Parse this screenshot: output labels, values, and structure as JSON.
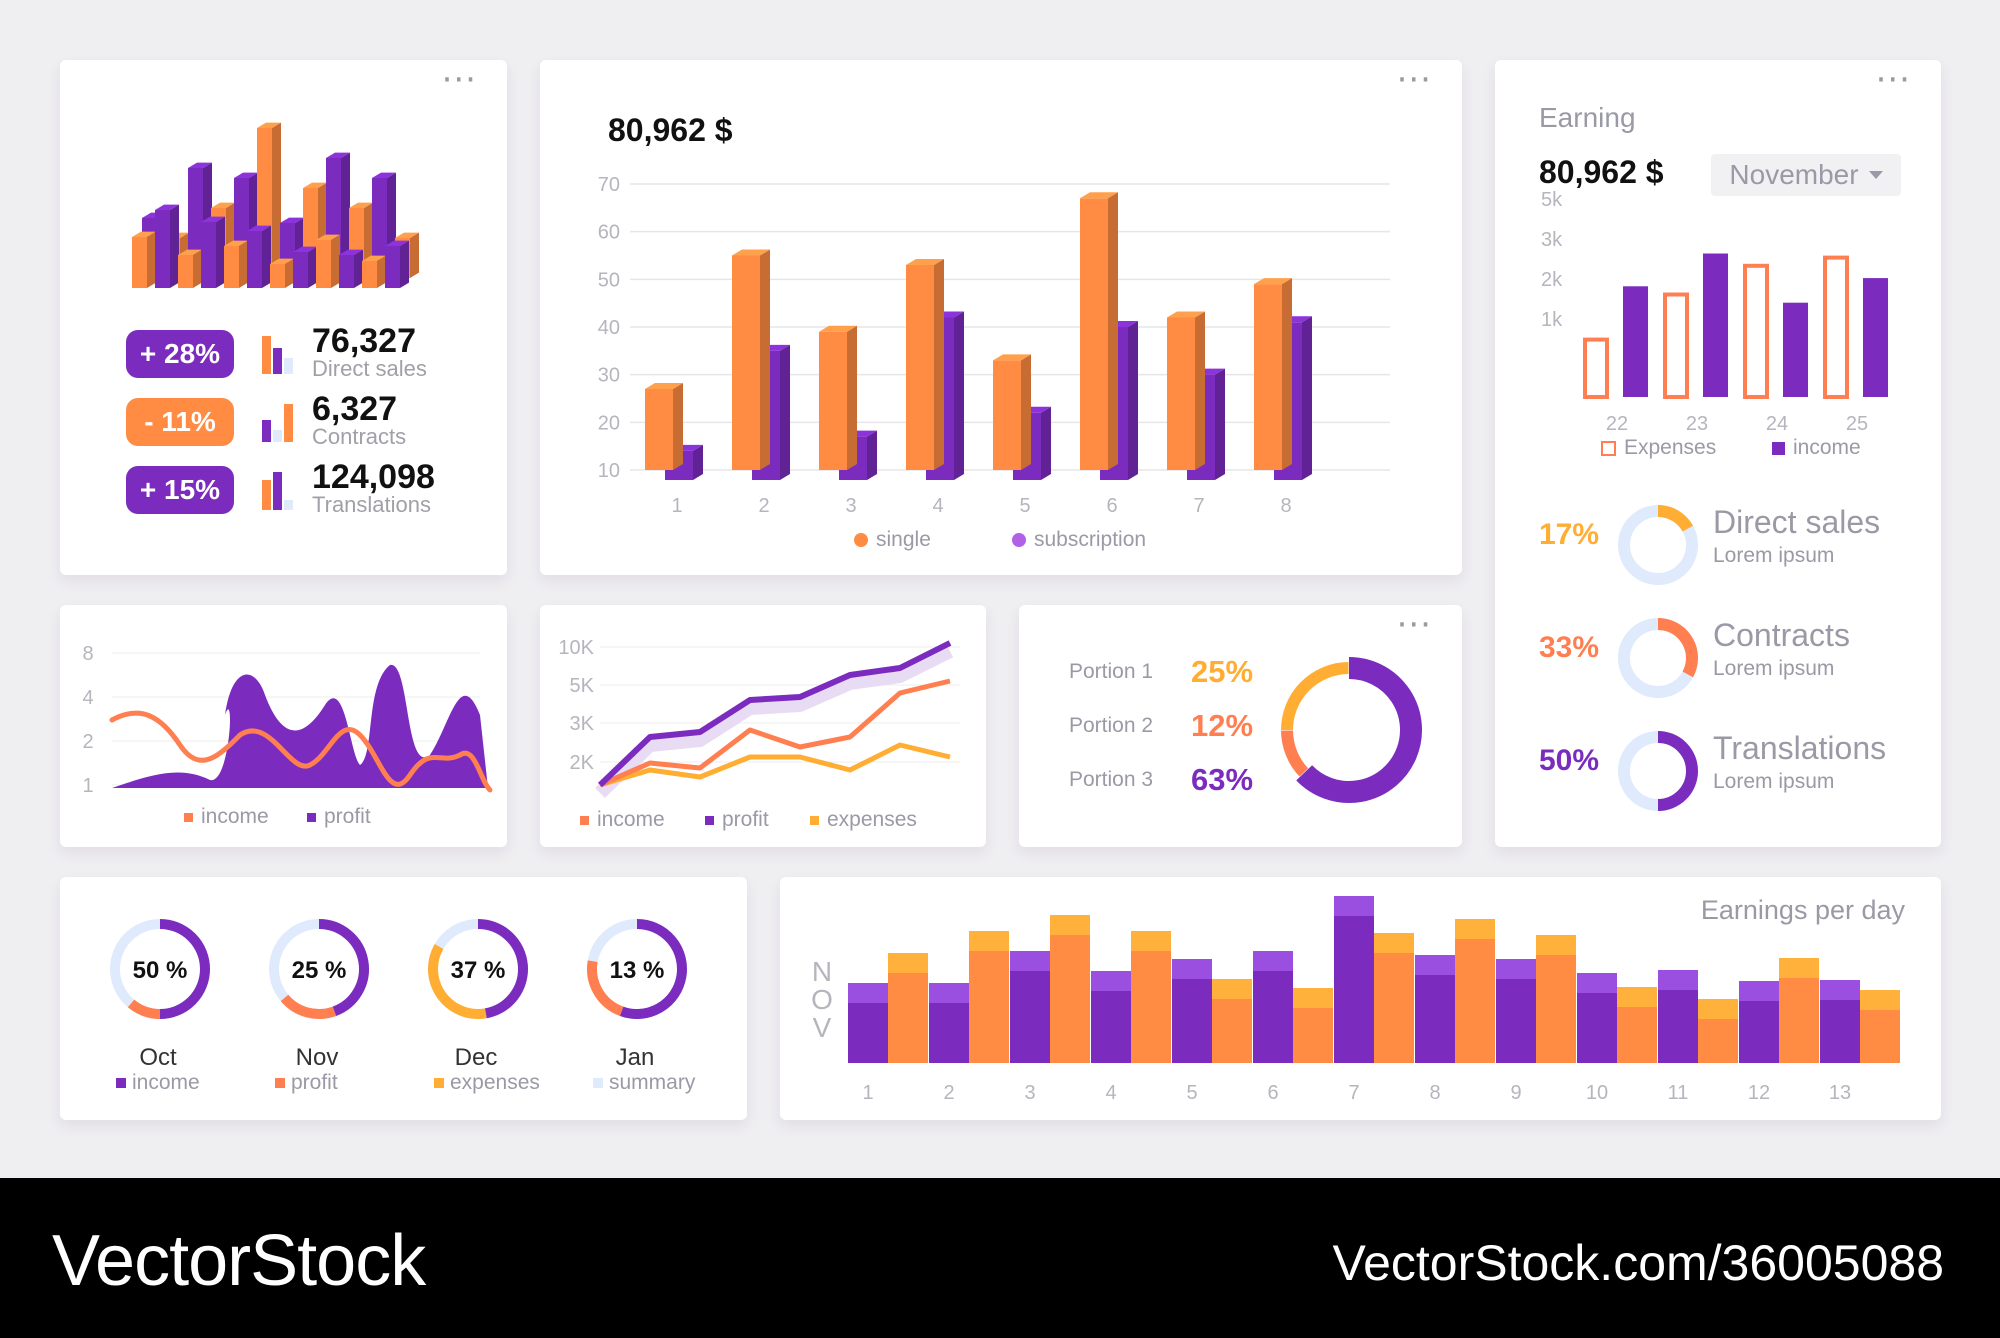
{
  "colors": {
    "purple": "#7b2cbf",
    "orange": "#ff8c42",
    "yellow": "#ffad33",
    "coral": "#ff7f50",
    "light": "#dfeafc"
  },
  "stats_card": {
    "menu": "···",
    "rows": [
      {
        "badge": "+ 28%",
        "value": "76,327",
        "label": "Direct sales",
        "badge_color": "#7b2cbf"
      },
      {
        "badge": "- 11%",
        "value": "6,327",
        "label": "Contracts",
        "badge_color": "#ff8c42"
      },
      {
        "badge": "+ 15%",
        "value": "124,098",
        "label": "Translations",
        "badge_color": "#7b2cbf"
      }
    ]
  },
  "main_bar": {
    "menu": "···",
    "total": "80,962 $",
    "chart_data": {
      "type": "bar",
      "categories": [
        "1",
        "2",
        "3",
        "4",
        "5",
        "6",
        "7",
        "8"
      ],
      "yticks": [
        10,
        20,
        30,
        40,
        50,
        60,
        70
      ],
      "ylim": [
        10,
        70
      ],
      "series": [
        {
          "name": "single",
          "values": [
            27,
            55,
            39,
            53,
            33,
            67,
            42,
            49
          ]
        },
        {
          "name": "subscription",
          "values": [
            14,
            35,
            17,
            42,
            22,
            40,
            30,
            41
          ]
        }
      ]
    }
  },
  "earning": {
    "menu": "···",
    "title": "Earning",
    "total": "80,962 $",
    "month": "November",
    "chart_data": {
      "type": "bar",
      "categories": [
        "22",
        "23",
        "24",
        "25"
      ],
      "yticks": [
        "1k",
        "2k",
        "3k",
        "5k"
      ],
      "series": [
        {
          "name": "Expenses",
          "values": [
            1.4,
            2.5,
            3.2,
            3.4
          ]
        },
        {
          "name": "income",
          "values": [
            2.7,
            3.5,
            2.3,
            2.9
          ]
        }
      ]
    },
    "rings": [
      {
        "pct": "17%",
        "value": 17,
        "title": "Direct sales",
        "sub": "Lorem ipsum",
        "color": "#ffad33"
      },
      {
        "pct": "33%",
        "value": 33,
        "title": "Contracts",
        "sub": "Lorem ipsum",
        "color": "#ff7f50"
      },
      {
        "pct": "50%",
        "value": 50,
        "title": "Translations",
        "sub": "Lorem ipsum",
        "color": "#7b2cbf"
      }
    ]
  },
  "area_chart": {
    "chart_data": {
      "type": "area",
      "yticks": [
        "1",
        "2",
        "4",
        "8"
      ],
      "series": [
        {
          "name": "income"
        },
        {
          "name": "profit"
        }
      ]
    }
  },
  "line_chart": {
    "chart_data": {
      "type": "line",
      "yticks": [
        "2K",
        "3K",
        "5K",
        "10K"
      ],
      "series": [
        {
          "name": "income"
        },
        {
          "name": "profit"
        },
        {
          "name": "expenses"
        }
      ]
    }
  },
  "portions": {
    "menu": "···",
    "chart_data": {
      "type": "pie",
      "labels": [
        "Portion 1",
        "Portion 2",
        "Portion 3"
      ],
      "pct_labels": [
        "25%",
        "12%",
        "63%"
      ],
      "values": [
        25,
        12,
        63
      ],
      "colors": [
        "#ffad33",
        "#ff7f50",
        "#7b2cbf"
      ]
    }
  },
  "monthly": {
    "items": [
      {
        "pct": "50 %",
        "value": 50,
        "month": "Oct",
        "legend": "income",
        "color": "#7b2cbf"
      },
      {
        "pct": "25 %",
        "value": 25,
        "month": "Nov",
        "legend": "profit",
        "color": "#ff7f50"
      },
      {
        "pct": "37 %",
        "value": 37,
        "month": "Dec",
        "legend": "expenses",
        "color": "#ffad33"
      },
      {
        "pct": "13 %",
        "value": 13,
        "month": "Jan",
        "legend": "summary",
        "color": "#dfeafc"
      }
    ]
  },
  "per_day": {
    "title": "Earnings per day",
    "month_label": "NOV",
    "chart_data": {
      "type": "bar",
      "categories": [
        "1",
        "2",
        "3",
        "4",
        "5",
        "6",
        "7",
        "8",
        "9",
        "10",
        "11",
        "12",
        "13"
      ],
      "purple_values": [
        60,
        60,
        92,
        72,
        84,
        92,
        147,
        88,
        84,
        70,
        73,
        62,
        63
      ],
      "orange_values": [
        90,
        112,
        128,
        112,
        64,
        55,
        110,
        124,
        108,
        56,
        44,
        85,
        53
      ]
    }
  },
  "footer": {
    "brand": "VectorStock",
    "url": "VectorStock.com/36005088"
  }
}
